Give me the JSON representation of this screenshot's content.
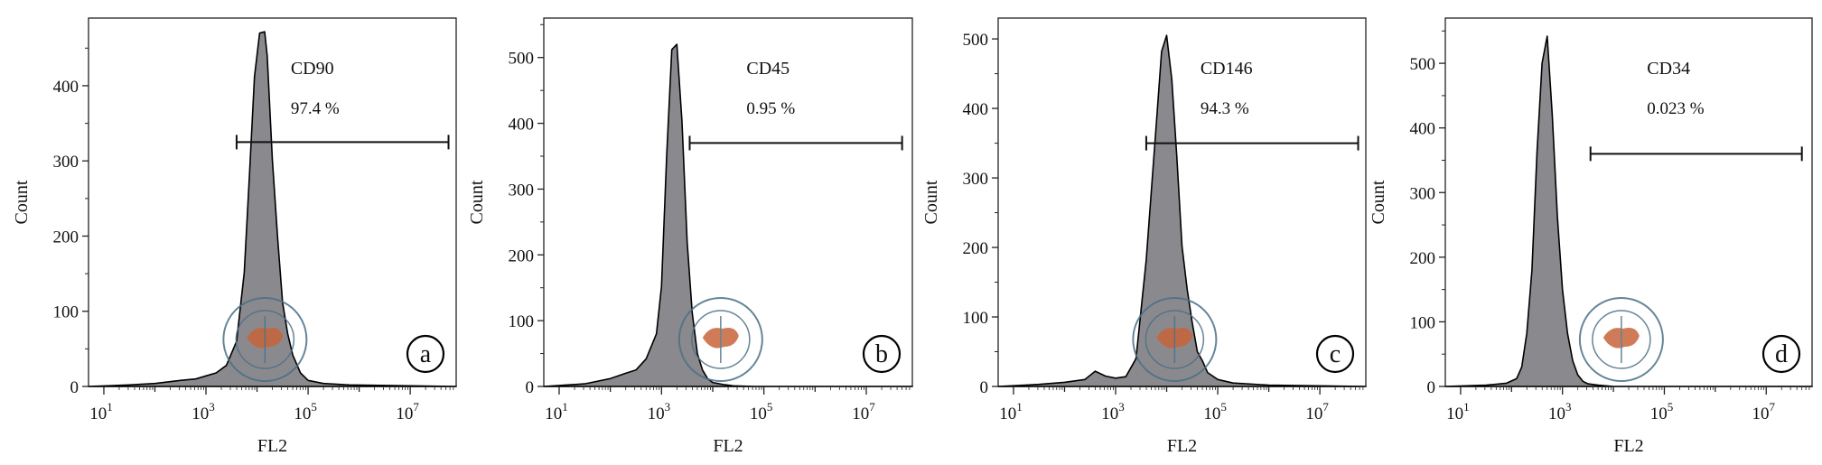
{
  "chart_data": [
    {
      "type": "area",
      "panel_label": "a",
      "marker": "CD90",
      "percent": "97.4 %",
      "xlabel": "FL2",
      "ylabel": "Count",
      "x_scale": "log",
      "xlim_log10": [
        0.7,
        7.9
      ],
      "x_ticks": [
        {
          "base": "10",
          "exp": "1"
        },
        {
          "base": "10",
          "exp": "3"
        },
        {
          "base": "10",
          "exp": "5"
        },
        {
          "base": "10",
          "exp": "7"
        }
      ],
      "y_ticks": [
        "0",
        "100",
        "200",
        "300",
        "400"
      ],
      "ylim": [
        0,
        490
      ],
      "gate_log10": [
        3.6,
        7.75
      ],
      "gate_count": 325,
      "grid": false,
      "histogram": {
        "log10_fl2": [
          0.7,
          1.5,
          2.0,
          2.5,
          2.8,
          3.0,
          3.2,
          3.4,
          3.6,
          3.75,
          3.85,
          3.95,
          4.05,
          4.15,
          4.2,
          4.3,
          4.4,
          4.5,
          4.6,
          4.7,
          4.85,
          5.0,
          5.3,
          5.8,
          7.9
        ],
        "count": [
          0,
          2,
          4,
          8,
          10,
          14,
          18,
          28,
          60,
          150,
          280,
          410,
          470,
          470,
          440,
          300,
          200,
          110,
          70,
          40,
          18,
          8,
          4,
          2,
          0
        ]
      }
    },
    {
      "type": "area",
      "panel_label": "b",
      "marker": "CD45",
      "percent": "0.95 %",
      "xlabel": "FL2",
      "ylabel": "Count",
      "x_scale": "log",
      "xlim_log10": [
        0.7,
        7.9
      ],
      "x_ticks": [
        {
          "base": "10",
          "exp": "1"
        },
        {
          "base": "10",
          "exp": "3"
        },
        {
          "base": "10",
          "exp": "5"
        },
        {
          "base": "10",
          "exp": "7"
        }
      ],
      "y_ticks": [
        "0",
        "100",
        "200",
        "300",
        "400",
        "500"
      ],
      "ylim": [
        0,
        560
      ],
      "gate_log10": [
        3.55,
        7.7
      ],
      "gate_count": 370,
      "grid": false,
      "histogram": {
        "log10_fl2": [
          0.7,
          1.5,
          2.0,
          2.3,
          2.5,
          2.7,
          2.9,
          3.0,
          3.1,
          3.2,
          3.3,
          3.4,
          3.5,
          3.6,
          3.7,
          3.8,
          3.9,
          4.0,
          4.2,
          4.4,
          4.8,
          7.9
        ],
        "count": [
          0,
          4,
          12,
          20,
          25,
          40,
          80,
          150,
          350,
          510,
          520,
          400,
          220,
          110,
          50,
          25,
          12,
          6,
          3,
          1,
          0,
          0
        ]
      }
    },
    {
      "type": "area",
      "panel_label": "c",
      "marker": "CD146",
      "percent": "94.3 %",
      "xlabel": "FL2",
      "ylabel": "Count",
      "x_scale": "log",
      "xlim_log10": [
        0.7,
        7.9
      ],
      "x_ticks": [
        {
          "base": "10",
          "exp": "1"
        },
        {
          "base": "10",
          "exp": "3"
        },
        {
          "base": "10",
          "exp": "5"
        },
        {
          "base": "10",
          "exp": "7"
        }
      ],
      "y_ticks": [
        "0",
        "100",
        "200",
        "300",
        "400",
        "500"
      ],
      "ylim": [
        0,
        530
      ],
      "gate_log10": [
        3.6,
        7.75
      ],
      "gate_count": 350,
      "grid": false,
      "histogram": {
        "log10_fl2": [
          0.7,
          1.5,
          2.0,
          2.4,
          2.6,
          2.8,
          3.0,
          3.2,
          3.4,
          3.6,
          3.8,
          3.9,
          4.0,
          4.1,
          4.2,
          4.3,
          4.4,
          4.5,
          4.6,
          4.7,
          4.8,
          5.0,
          5.3,
          6.0,
          7.9
        ],
        "count": [
          0,
          3,
          6,
          10,
          22,
          15,
          12,
          14,
          40,
          180,
          380,
          480,
          505,
          440,
          330,
          200,
          140,
          90,
          50,
          35,
          20,
          10,
          5,
          2,
          0
        ]
      }
    },
    {
      "type": "area",
      "panel_label": "d",
      "marker": "CD34",
      "percent": "0.023 %",
      "xlabel": "FL2",
      "ylabel": "Count",
      "x_scale": "log",
      "xlim_log10": [
        0.7,
        7.9
      ],
      "x_ticks": [
        {
          "base": "10",
          "exp": "1"
        },
        {
          "base": "10",
          "exp": "3"
        },
        {
          "base": "10",
          "exp": "5"
        },
        {
          "base": "10",
          "exp": "7"
        }
      ],
      "y_ticks": [
        "0",
        "100",
        "200",
        "300",
        "400",
        "500"
      ],
      "ylim": [
        0,
        570
      ],
      "gate_log10": [
        3.55,
        7.7
      ],
      "gate_count": 360,
      "grid": false,
      "histogram": {
        "log10_fl2": [
          0.7,
          1.5,
          1.9,
          2.1,
          2.2,
          2.3,
          2.4,
          2.5,
          2.6,
          2.7,
          2.8,
          2.9,
          3.0,
          3.1,
          3.2,
          3.3,
          3.4,
          3.5,
          3.7,
          4.0,
          7.9
        ],
        "count": [
          0,
          2,
          5,
          12,
          30,
          80,
          180,
          360,
          500,
          540,
          420,
          260,
          150,
          80,
          40,
          18,
          8,
          4,
          2,
          0,
          0
        ]
      }
    }
  ]
}
